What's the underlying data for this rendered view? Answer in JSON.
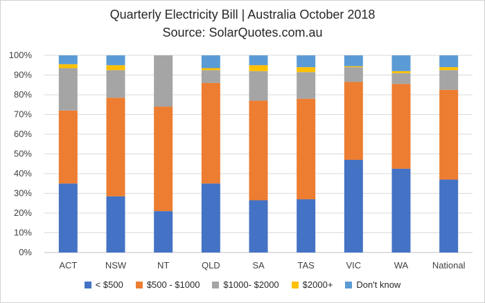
{
  "chart_data": {
    "type": "bar",
    "stacked": true,
    "title_line1": "Quarterly Electricity Bill | Australia October 2018",
    "title_line2": "Source: SolarQuotes.com.au",
    "categories": [
      "ACT",
      "NSW",
      "NT",
      "QLD",
      "SA",
      "TAS",
      "VIC",
      "WA",
      "National"
    ],
    "y_ticks": [
      "0%",
      "10%",
      "20%",
      "30%",
      "40%",
      "50%",
      "60%",
      "70%",
      "80%",
      "90%",
      "100%"
    ],
    "ylim": [
      0,
      100
    ],
    "grid": true,
    "legend_position": "bottom",
    "series": [
      {
        "name": "< $500",
        "color": "#4472C4",
        "values": [
          35,
          28.5,
          21,
          35,
          26.5,
          27,
          47,
          42.5,
          37
        ]
      },
      {
        "name": "$500 - $1000",
        "color": "#ED7D31",
        "values": [
          37,
          50,
          53,
          51,
          50.5,
          51,
          39.5,
          43,
          45.5
        ]
      },
      {
        "name": "$1000- $2000",
        "color": "#A5A5A5",
        "values": [
          21.5,
          14,
          26,
          6.5,
          15,
          13.5,
          7.5,
          5.5,
          10
        ]
      },
      {
        "name": "$2000+",
        "color": "#FFC000",
        "values": [
          2,
          2.5,
          0,
          1,
          3,
          2.5,
          0.5,
          1,
          1.5
        ]
      },
      {
        "name": "Don't know",
        "color": "#5B9BD5",
        "values": [
          4.5,
          5,
          0,
          6.5,
          5,
          6,
          5.5,
          8,
          6
        ]
      }
    ]
  }
}
